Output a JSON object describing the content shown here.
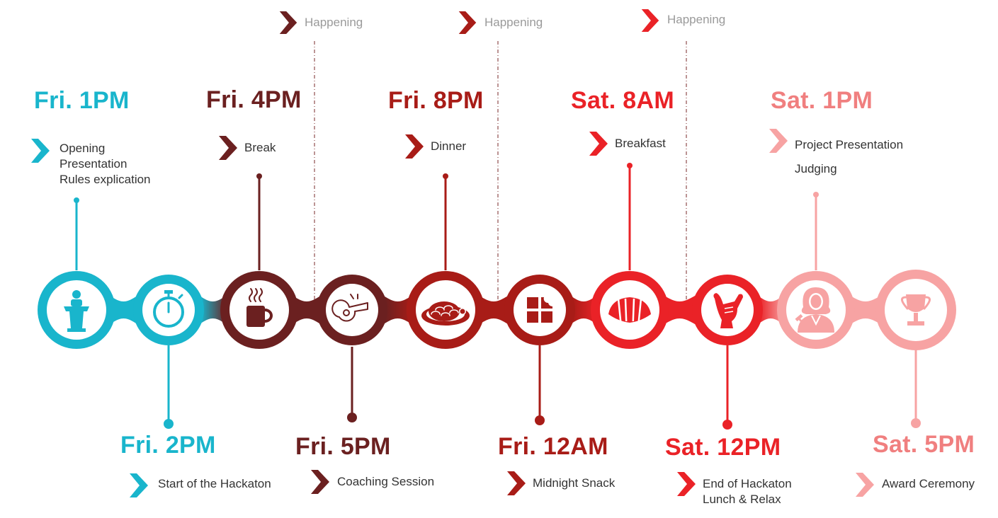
{
  "colors": {
    "teal": "#19b5cc",
    "maroon": "#6b2020",
    "dark_red": "#a81c17",
    "red": "#ea2227",
    "pink": "#f7a3a3",
    "pink_text": "#f07f7f",
    "separator": "#7a2a2a",
    "happening_text": "#9a9a9a"
  },
  "happening_labels": [
    "Happening",
    "Happening",
    "Happening"
  ],
  "events": [
    {
      "time": "Fri. 1PM",
      "position": "top",
      "icon": "podium-icon",
      "color": "teal",
      "lines": [
        "Opening",
        "Presentation",
        "Rules explication"
      ]
    },
    {
      "time": "Fri. 2PM",
      "position": "bottom",
      "icon": "stopwatch-icon",
      "color": "teal",
      "lines": [
        "Start of the Hackaton"
      ]
    },
    {
      "time": "Fri. 4PM",
      "position": "top",
      "icon": "coffee-cup-icon",
      "color": "maroon",
      "lines": [
        "Break"
      ]
    },
    {
      "time": "Fri. 5PM",
      "position": "bottom",
      "icon": "whistle-icon",
      "color": "maroon",
      "lines": [
        "Coaching Session"
      ]
    },
    {
      "time": "Fri. 8PM",
      "position": "top",
      "icon": "spaghetti-plate-icon",
      "color": "dark_red",
      "lines": [
        "Dinner"
      ]
    },
    {
      "time": "Fri. 12AM",
      "position": "bottom",
      "icon": "chocolate-bar-icon",
      "color": "dark_red",
      "lines": [
        "Midnight Snack"
      ]
    },
    {
      "time": "Sat. 8AM",
      "position": "top",
      "icon": "croissant-icon",
      "color": "red",
      "lines": [
        "Breakfast"
      ]
    },
    {
      "time": "Sat. 12PM",
      "position": "bottom",
      "icon": "shaka-hand-icon",
      "color": "red",
      "lines": [
        "End of Hackaton",
        "Lunch & Relax"
      ]
    },
    {
      "time": "Sat. 1PM",
      "position": "top",
      "icon": "judge-icon",
      "color": "pink",
      "lines": [
        "Project Presentation",
        "Judging"
      ]
    },
    {
      "time": "Sat. 5PM",
      "position": "bottom",
      "icon": "trophy-icon",
      "color": "pink",
      "lines": [
        "Award Ceremony"
      ]
    }
  ]
}
